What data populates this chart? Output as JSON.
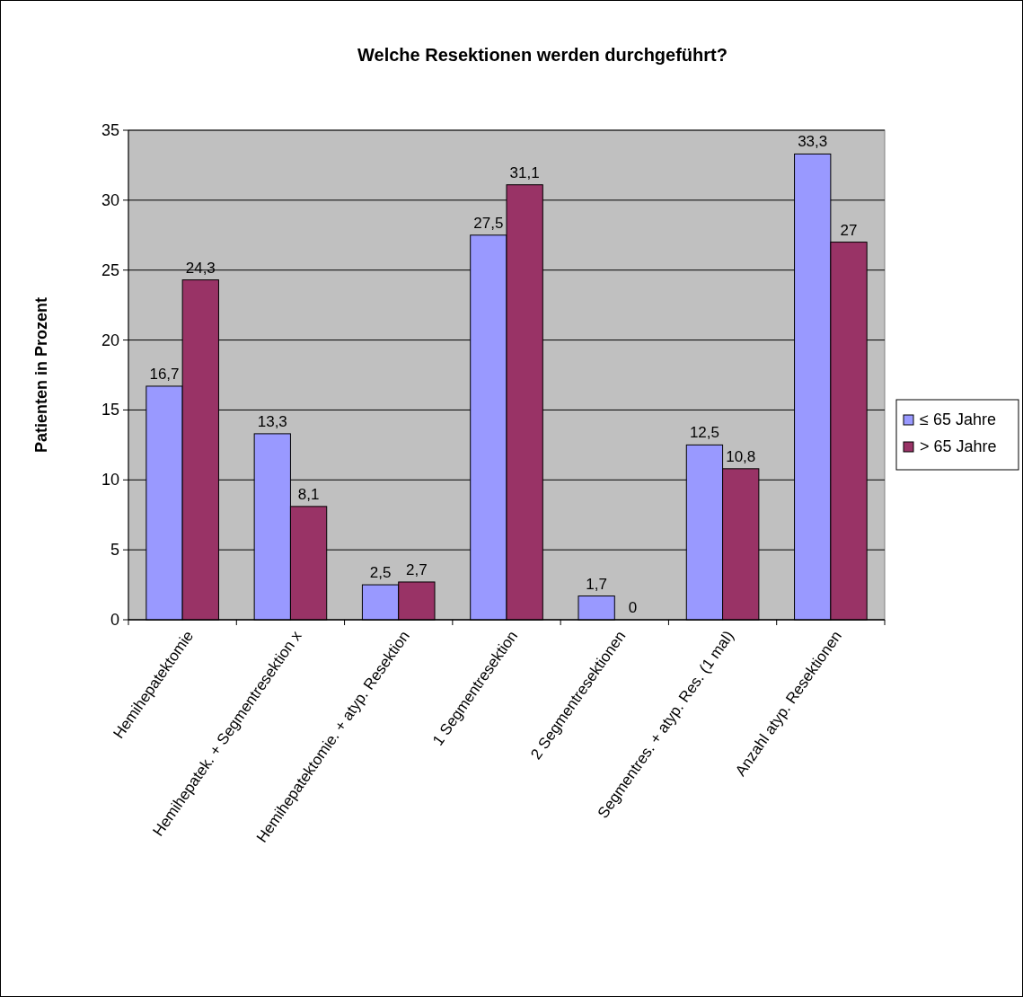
{
  "chart_data": {
    "type": "bar",
    "title": "Welche Resektionen werden durchgeführt?",
    "ylabel": "Patienten in Prozent",
    "categories": [
      "Hemihepatektomie",
      "Hemihepatek. + Segmentresektion x",
      "Hemihepatektomie. + atyp. Resektion",
      "1 Segmentresektion",
      "2 Segmentresektionen",
      "Segmentres. + atyp. Res. (1 mal)",
      "Anzahl atyp. Resektionen"
    ],
    "series": [
      {
        "name": "≤ 65 Jahre",
        "color": "#9999ff",
        "values": [
          16.7,
          13.3,
          2.5,
          27.5,
          1.7,
          12.5,
          33.3
        ],
        "value_labels": [
          "16,7",
          "13,3",
          "2,5",
          "27,5",
          "1,7",
          "12,5",
          "33,3"
        ]
      },
      {
        "name": "> 65 Jahre",
        "color": "#993366",
        "values": [
          24.3,
          8.1,
          2.7,
          31.1,
          0,
          10.8,
          27
        ],
        "value_labels": [
          "24,3",
          "8,1",
          "2,7",
          "31,1",
          "0",
          "10,8",
          "27"
        ]
      }
    ],
    "ylim": [
      0,
      35
    ],
    "yticks": [
      0,
      5,
      10,
      15,
      20,
      25,
      30,
      35
    ],
    "grid": "y",
    "legend": "right"
  }
}
